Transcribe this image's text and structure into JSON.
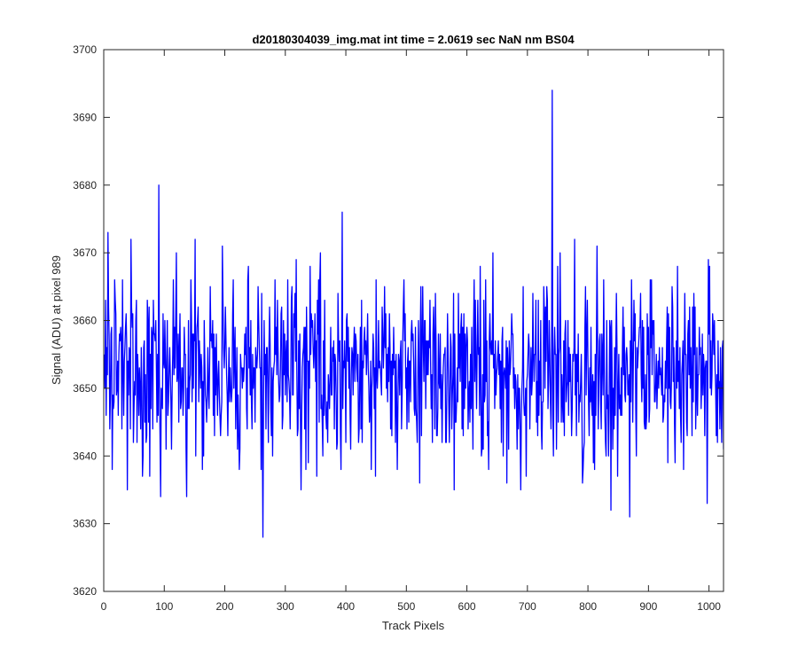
{
  "chart_data": {
    "type": "line",
    "title": "d20180304039_img.mat int time = 2.0619 sec  NaN nm BS04",
    "xlabel": "Track Pixels",
    "ylabel": "Signal (ADU) at pixel 989",
    "xlim": [
      0,
      1024
    ],
    "ylim": [
      3620,
      3700
    ],
    "xticks": [
      "0",
      "100",
      "200",
      "300",
      "400",
      "500",
      "600",
      "700",
      "800",
      "900",
      "1000"
    ],
    "yticks": [
      "3620",
      "3630",
      "3640",
      "3650",
      "3660",
      "3670",
      "3680",
      "3690",
      "3700"
    ],
    "grid": false,
    "line_color": "#0000ff",
    "series": [
      {
        "x_start": 1,
        "x_step": 1,
        "noise_mean": 3652.5,
        "noise_spread": 7,
        "notable_points": [
          {
            "x": 7,
            "y": 3673
          },
          {
            "x": 14,
            "y": 3638
          },
          {
            "x": 91,
            "y": 3680
          },
          {
            "x": 94,
            "y": 3634
          },
          {
            "x": 263,
            "y": 3628
          },
          {
            "x": 394,
            "y": 3676
          },
          {
            "x": 741,
            "y": 3694
          },
          {
            "x": 838,
            "y": 3632
          },
          {
            "x": 869,
            "y": 3631
          },
          {
            "x": 997,
            "y": 3633
          },
          {
            "x": 1024,
            "y": 3641
          }
        ]
      }
    ]
  }
}
